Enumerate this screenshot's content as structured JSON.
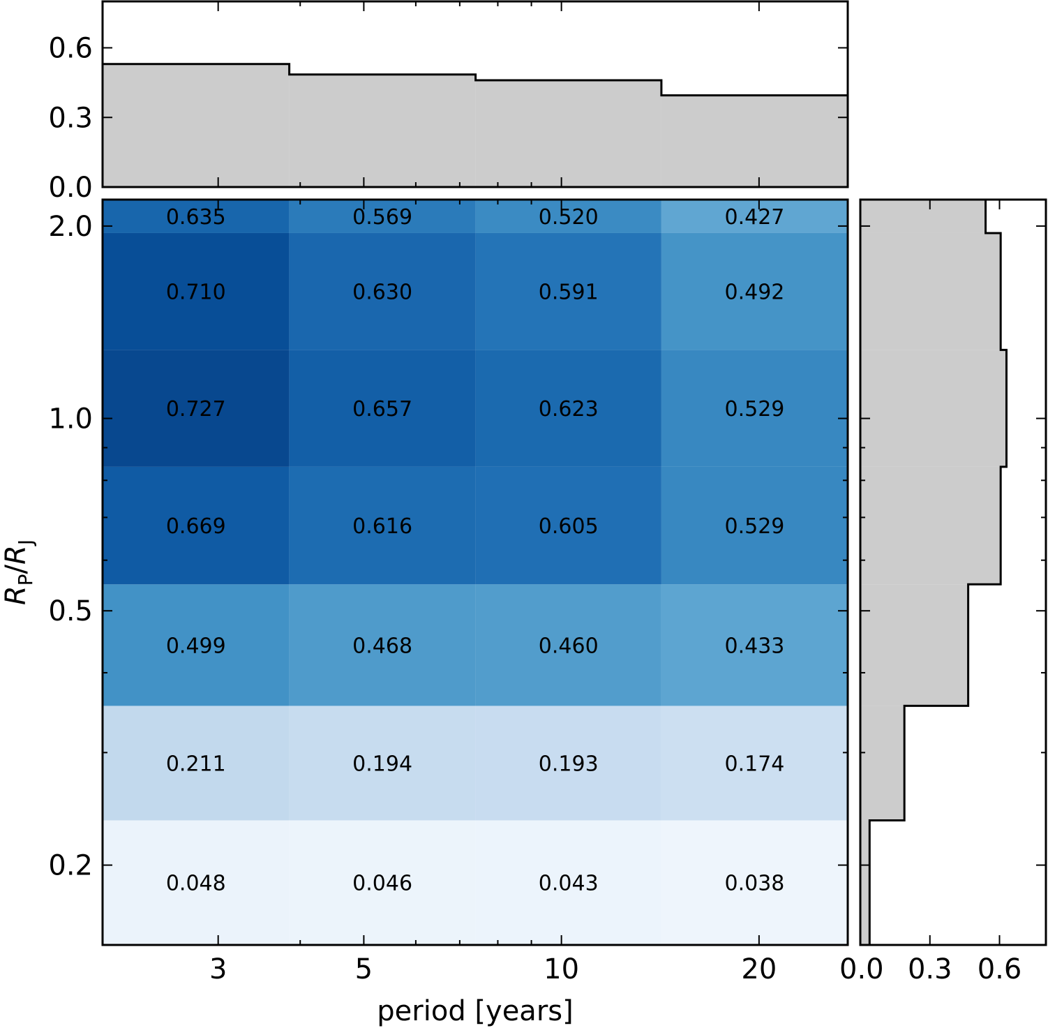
{
  "chart_data": [
    {
      "id": "heatmap",
      "type": "heatmap",
      "title": "",
      "xlabel": "period [years]",
      "ylabel": "R_P/R_J",
      "ylabel_parts": {
        "main": "R",
        "sub1": "P",
        "sep": "/",
        "main2": "R",
        "sub2": "J"
      },
      "x_scale": "log",
      "y_scale": "log",
      "x_edges": [
        2.0,
        3.85,
        7.4,
        14.2,
        27.3
      ],
      "y_edges": [
        0.15,
        0.235,
        0.355,
        0.55,
        0.84,
        1.28,
        1.95,
        2.2
      ],
      "xlim": [
        2.0,
        27.3
      ],
      "ylim": [
        0.15,
        2.2
      ],
      "x_ticks": [
        {
          "value": 3,
          "label": "3"
        },
        {
          "value": 5,
          "label": "5"
        },
        {
          "value": 10,
          "label": "10"
        },
        {
          "value": 20,
          "label": "20"
        }
      ],
      "x_minor_ticks": [
        2,
        4,
        6,
        7,
        8,
        9
      ],
      "y_ticks": [
        {
          "value": 0.2,
          "label": "0.2"
        },
        {
          "value": 0.5,
          "label": "0.5"
        },
        {
          "value": 1.0,
          "label": "1.0"
        },
        {
          "value": 2.0,
          "label": "2.0"
        }
      ],
      "y_minor_ticks": [
        0.3,
        0.4,
        0.6,
        0.7,
        0.8,
        0.9
      ],
      "rows_bottom_to_top": [
        [
          0.048,
          0.046,
          0.043,
          0.038
        ],
        [
          0.211,
          0.194,
          0.193,
          0.174
        ],
        [
          0.499,
          0.468,
          0.46,
          0.433
        ],
        [
          0.669,
          0.616,
          0.605,
          0.529
        ],
        [
          0.727,
          0.657,
          0.623,
          0.529
        ],
        [
          0.71,
          0.63,
          0.591,
          0.492
        ],
        [
          0.635,
          0.569,
          0.52,
          0.427
        ]
      ],
      "labels_bottom_to_top": [
        [
          "0.048",
          "0.046",
          "0.043",
          "0.038"
        ],
        [
          "0.211",
          "0.194",
          "0.193",
          "0.174"
        ],
        [
          "0.499",
          "0.468",
          "0.460",
          "0.433"
        ],
        [
          "0.669",
          "0.616",
          "0.605",
          "0.529"
        ],
        [
          "0.727",
          "0.657",
          "0.623",
          "0.529"
        ],
        [
          "0.710",
          "0.630",
          "0.591",
          "0.492"
        ],
        [
          "0.635",
          "0.569",
          "0.520",
          "0.427"
        ]
      ],
      "colormap": "Blues",
      "color_range": [
        0.0,
        0.8
      ]
    },
    {
      "id": "top_histogram",
      "type": "bar",
      "orientation": "vertical",
      "style": "step-filled",
      "values": [
        0.53,
        0.485,
        0.46,
        0.395
      ],
      "ylim": [
        0.0,
        0.8
      ],
      "y_ticks": [
        {
          "value": 0.0,
          "label": "0.0"
        },
        {
          "value": 0.3,
          "label": "0.3"
        },
        {
          "value": 0.6,
          "label": "0.6"
        }
      ]
    },
    {
      "id": "right_histogram",
      "type": "bar",
      "orientation": "horizontal",
      "style": "step-filled",
      "values_bottom_to_top": [
        0.04,
        0.19,
        0.465,
        0.605,
        0.63,
        0.605,
        0.54
      ],
      "xlim": [
        0.0,
        0.8
      ],
      "x_ticks": [
        {
          "value": 0.0,
          "label": "0.0"
        },
        {
          "value": 0.3,
          "label": "0.3"
        },
        {
          "value": 0.6,
          "label": "0.6"
        }
      ]
    }
  ],
  "colors": {
    "hist_fill": "#cccccc",
    "line": "#000000",
    "background": "#ffffff"
  }
}
